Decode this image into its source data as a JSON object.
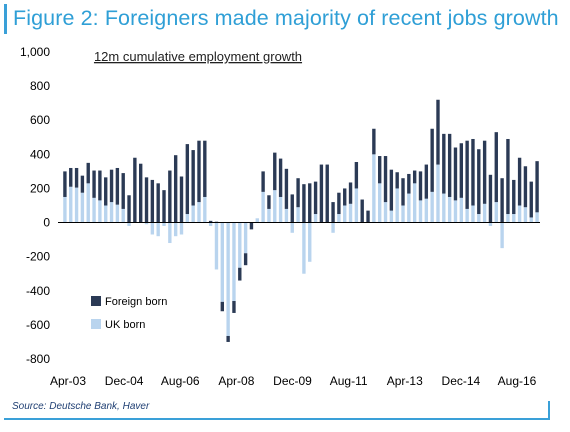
{
  "figure": {
    "title": "Figure 2: Foreigners made majority of recent jobs growth",
    "source": "Source: Deutsche Bank, Haver"
  },
  "colors": {
    "accent": "#2f9fd6",
    "foreign": "#2b3a55",
    "uk": "#b9d4ee"
  },
  "chart_data": {
    "type": "bar",
    "stacked": true,
    "subtitle": "12m cumulative employment growth",
    "xlabel": "",
    "ylabel": "",
    "ylim": [
      -800,
      1000
    ],
    "yticks": [
      -800,
      -600,
      -400,
      -200,
      0,
      200,
      400,
      600,
      800,
      1000
    ],
    "ytick_labels": [
      "-800",
      "-600",
      "-400",
      "-200",
      "0",
      "200",
      "400",
      "600",
      "800",
      "1,000"
    ],
    "x_tick_labels": [
      "Apr-03",
      "Dec-04",
      "Aug-06",
      "Apr-08",
      "Dec-09",
      "Aug-11",
      "Apr-13",
      "Dec-14",
      "Aug-16"
    ],
    "grid": false,
    "legend": "lower-left",
    "series": [
      {
        "name": "Foreign born",
        "values": [
          150,
          110,
          115,
          100,
          120,
          160,
          175,
          165,
          190,
          215,
          210,
          160,
          380,
          345,
          265,
          250,
          230,
          190,
          305,
          395,
          270,
          410,
          325,
          360,
          330,
          10,
          5,
          -55,
          -35,
          -70,
          -75,
          -70,
          -40,
          0,
          120,
          80,
          220,
          225,
          235,
          165,
          170,
          225,
          230,
          190,
          340,
          340,
          120,
          125,
          100,
          125,
          155,
          135,
          70,
          150,
          160,
          270,
          240,
          95,
          160,
          115,
          75,
          170,
          200,
          370,
          380,
          350,
          370,
          310,
          320,
          400,
          390,
          380,
          370,
          280,
          410,
          260,
          440,
          200,
          280,
          240,
          210,
          300
        ]
      },
      {
        "name": "UK born",
        "values": [
          150,
          210,
          205,
          175,
          230,
          145,
          130,
          100,
          120,
          105,
          80,
          -20,
          0,
          0,
          -10,
          -70,
          -80,
          -20,
          -120,
          -80,
          -70,
          50,
          100,
          120,
          150,
          -20,
          -275,
          -465,
          -665,
          -460,
          -265,
          -180,
          0,
          25,
          180,
          80,
          190,
          150,
          80,
          -60,
          90,
          -300,
          -230,
          50,
          0,
          0,
          -60,
          50,
          100,
          110,
          200,
          0,
          0,
          400,
          230,
          120,
          70,
          200,
          100,
          170,
          230,
          130,
          140,
          180,
          340,
          170,
          150,
          130,
          145,
          80,
          100,
          50,
          110,
          -20,
          120,
          -150,
          50,
          50,
          100,
          90,
          30,
          60
        ]
      }
    ]
  }
}
